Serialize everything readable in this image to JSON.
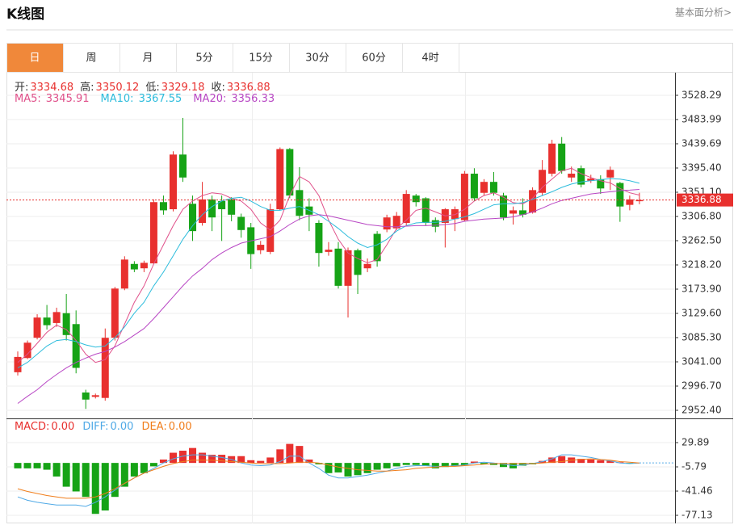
{
  "header": {
    "title": "K线图",
    "link": "基本面分析>"
  },
  "tabs": [
    {
      "label": "日",
      "active": true
    },
    {
      "label": "周",
      "active": false
    },
    {
      "label": "月",
      "active": false
    },
    {
      "label": "5分",
      "active": false
    },
    {
      "label": "15分",
      "active": false
    },
    {
      "label": "30分",
      "active": false
    },
    {
      "label": "60分",
      "active": false
    },
    {
      "label": "4时",
      "active": false
    }
  ],
  "chart_data": [
    {
      "type": "candlestick",
      "up_color": "#e8302e",
      "down_color": "#16a316",
      "grid": true,
      "info_labels": {
        "open": "开:",
        "high": "高:",
        "low": "低:",
        "close": "收:"
      },
      "open": [
        3022,
        3048,
        3085,
        3122,
        3112,
        3130,
        3110,
        2985,
        2977,
        2975,
        3085,
        3175,
        3220,
        3212,
        3221,
        3333,
        3320,
        3420,
        3330,
        3295,
        3338,
        3335,
        3338,
        3306,
        3287,
        3245,
        3242,
        3320,
        3430,
        3355,
        3325,
        3295,
        3242,
        3248,
        3180,
        3245,
        3212,
        3275,
        3283,
        3285,
        3295,
        3345,
        3340,
        3300,
        3295,
        3302,
        3300,
        3385,
        3350,
        3370,
        3345,
        3312,
        3318,
        3314,
        3350,
        3385,
        3440,
        3378,
        3395,
        3372,
        3375,
        3378,
        3368,
        3328,
        3334.68
      ],
      "high": [
        3060,
        3080,
        3128,
        3145,
        3140,
        3165,
        3135,
        2990,
        2983,
        3102,
        3178,
        3234,
        3225,
        3226,
        3338,
        3345,
        3426,
        3487,
        3345,
        3370,
        3345,
        3345,
        3342,
        3312,
        3295,
        3262,
        3330,
        3433,
        3432,
        3397,
        3340,
        3300,
        3260,
        3260,
        3250,
        3248,
        3230,
        3280,
        3310,
        3315,
        3355,
        3348,
        3342,
        3305,
        3322,
        3325,
        3390,
        3395,
        3375,
        3388,
        3350,
        3325,
        3340,
        3360,
        3410,
        3447,
        3452,
        3398,
        3400,
        3383,
        3382,
        3398,
        3370,
        3345,
        3350.12
      ],
      "low": [
        3016,
        3046,
        3082,
        3100,
        3105,
        3080,
        3020,
        2955,
        2974,
        2970,
        3080,
        3172,
        3205,
        3205,
        3220,
        3310,
        3316,
        3370,
        3262,
        3290,
        3280,
        3262,
        3298,
        3268,
        3211,
        3238,
        3238,
        3318,
        3340,
        3300,
        3280,
        3215,
        3235,
        3175,
        3122,
        3165,
        3205,
        3215,
        3278,
        3282,
        3290,
        3325,
        3290,
        3278,
        3250,
        3280,
        3298,
        3335,
        3345,
        3345,
        3300,
        3292,
        3305,
        3312,
        3345,
        3380,
        3385,
        3370,
        3360,
        3368,
        3348,
        3355,
        3297,
        3318,
        3329.18
      ],
      "close": [
        3050,
        3076,
        3122,
        3108,
        3132,
        3090,
        3030,
        2972,
        2980,
        3085,
        3175,
        3228,
        3210,
        3222,
        3333,
        3318,
        3420,
        3378,
        3280,
        3338,
        3305,
        3320,
        3310,
        3282,
        3238,
        3255,
        3320,
        3430,
        3345,
        3308,
        3310,
        3240,
        3246,
        3180,
        3245,
        3200,
        3220,
        3225,
        3305,
        3308,
        3348,
        3333,
        3295,
        3288,
        3320,
        3320,
        3385,
        3340,
        3370,
        3350,
        3305,
        3318,
        3310,
        3355,
        3392,
        3440,
        3390,
        3385,
        3365,
        3376,
        3358,
        3392,
        3325,
        3338,
        3336.88
      ],
      "series": [
        {
          "name": "MA5:",
          "color": "#e0508a",
          "values": [
            3040,
            3055,
            3075,
            3095,
            3108,
            3100,
            3080,
            3055,
            3040,
            3045,
            3070,
            3110,
            3150,
            3180,
            3220,
            3255,
            3290,
            3320,
            3335,
            3345,
            3350,
            3348,
            3340,
            3335,
            3320,
            3295,
            3282,
            3300,
            3345,
            3380,
            3370,
            3345,
            3300,
            3265,
            3240,
            3230,
            3222,
            3228,
            3255,
            3285,
            3300,
            3318,
            3322,
            3315,
            3308,
            3310,
            3320,
            3335,
            3345,
            3350,
            3342,
            3332,
            3330,
            3340,
            3360,
            3375,
            3390,
            3395,
            3385,
            3378,
            3372,
            3368,
            3358,
            3350,
            3345.91
          ]
        },
        {
          "name": "MA10:",
          "color": "#2cbcdc",
          "values": [
            3030,
            3040,
            3055,
            3070,
            3080,
            3082,
            3078,
            3072,
            3068,
            3070,
            3085,
            3105,
            3130,
            3150,
            3180,
            3205,
            3235,
            3265,
            3290,
            3310,
            3325,
            3335,
            3340,
            3342,
            3335,
            3325,
            3318,
            3318,
            3322,
            3325,
            3318,
            3310,
            3298,
            3285,
            3270,
            3258,
            3250,
            3255,
            3265,
            3280,
            3290,
            3295,
            3296,
            3296,
            3298,
            3302,
            3306,
            3312,
            3320,
            3328,
            3330,
            3330,
            3332,
            3338,
            3345,
            3352,
            3360,
            3366,
            3370,
            3372,
            3374,
            3376,
            3375,
            3372,
            3367.55
          ]
        },
        {
          "name": "MA20:",
          "color": "#b846c4",
          "values": [
            2965,
            2978,
            2990,
            3005,
            3018,
            3030,
            3040,
            3048,
            3055,
            3060,
            3068,
            3078,
            3090,
            3102,
            3120,
            3140,
            3160,
            3180,
            3198,
            3212,
            3228,
            3240,
            3250,
            3258,
            3262,
            3266,
            3270,
            3280,
            3292,
            3302,
            3308,
            3310,
            3308,
            3304,
            3300,
            3296,
            3292,
            3290,
            3288,
            3288,
            3289,
            3290,
            3290,
            3291,
            3292,
            3294,
            3298,
            3300,
            3302,
            3303,
            3304,
            3306,
            3310,
            3315,
            3322,
            3330,
            3336,
            3340,
            3344,
            3348,
            3350,
            3352,
            3354,
            3355,
            3356.33
          ]
        }
      ],
      "ylim": [
        2937.63,
        3566.68
      ],
      "yticks": [
        3528.29,
        3483.99,
        3439.69,
        {
          "value": 3395.4,
          "label": "3395.40"
        },
        {
          "value": 3351.1,
          "label": "3351.10"
        },
        {
          "value": 3306.8,
          "label": "3306.80"
        },
        {
          "value": 3262.5,
          "label": "3262.50"
        },
        {
          "value": 3218.2,
          "label": "3218.20"
        },
        {
          "value": 3173.9,
          "label": "3173.90"
        },
        {
          "value": 3129.6,
          "label": "3129.60"
        },
        {
          "value": 3085.3,
          "label": "3085.30"
        },
        {
          "value": 3041,
          "label": "3041.00"
        },
        {
          "value": 2996.7,
          "label": "2996.70"
        },
        {
          "value": 2952.4,
          "label": "2952.40"
        }
      ]
    },
    {
      "type": "macd",
      "grid": true,
      "histogram": {
        "name": "MACD:",
        "value_label": "0.00",
        "color": "#e8302e",
        "up_color": "#e8302e",
        "down_color": "#16a316",
        "values": [
          -8,
          -8,
          -8,
          -10,
          -20,
          -35,
          -42,
          -50,
          -75,
          -70,
          -50,
          -35,
          -20,
          -15,
          -5,
          5,
          15,
          18,
          22,
          15,
          12,
          12,
          10,
          10,
          4,
          3,
          8,
          20,
          28,
          25,
          5,
          -2,
          -15,
          -14,
          -20,
          -18,
          -15,
          -10,
          -8,
          -5,
          -3,
          -3,
          -4,
          -8,
          -6,
          -5,
          -3,
          2,
          -2,
          -3,
          -6,
          -8,
          -4,
          -2,
          3,
          8,
          10,
          8,
          6,
          5,
          4,
          3,
          1,
          -1,
          0
        ]
      },
      "series": [
        {
          "name": "DIFF:",
          "value_label": "0.00",
          "color": "#4fa9e6",
          "values": [
            -50,
            -55,
            -58,
            -60,
            -62,
            -62,
            -62,
            -64,
            -58,
            -50,
            -40,
            -30,
            -22,
            -15,
            -8,
            0,
            6,
            10,
            12,
            12,
            10,
            8,
            5,
            0,
            -3,
            -4,
            -3,
            2,
            10,
            10,
            0,
            -8,
            -18,
            -22,
            -22,
            -20,
            -18,
            -15,
            -12,
            -8,
            -5,
            -4,
            -4,
            -5,
            -5,
            -4,
            -3,
            0,
            1,
            0,
            -2,
            -4,
            -3,
            -1,
            2,
            6,
            12,
            12,
            10,
            8,
            5,
            3,
            0,
            -1,
            0
          ]
        },
        {
          "name": "DEA:",
          "value_label": "0.00",
          "color": "#f07d1a",
          "values": [
            -38,
            -42,
            -45,
            -48,
            -50,
            -52,
            -52,
            -52,
            -50,
            -45,
            -38,
            -30,
            -22,
            -15,
            -10,
            -5,
            -1,
            2,
            4,
            4,
            4,
            3,
            2,
            1,
            0,
            -1,
            -1,
            -1,
            0,
            1,
            1,
            0,
            -3,
            -6,
            -8,
            -10,
            -11,
            -12,
            -12,
            -11,
            -10,
            -8,
            -7,
            -6,
            -5,
            -5,
            -4,
            -3,
            -2,
            -1,
            -1,
            -1,
            -1,
            -1,
            0,
            1,
            2,
            4,
            5,
            6,
            5,
            4,
            2,
            1,
            0
          ]
        }
      ],
      "ylim": [
        -89,
        63.2
      ],
      "yticks": [
        29.89,
        -5.79,
        -41.46,
        -77.13
      ]
    }
  ]
}
